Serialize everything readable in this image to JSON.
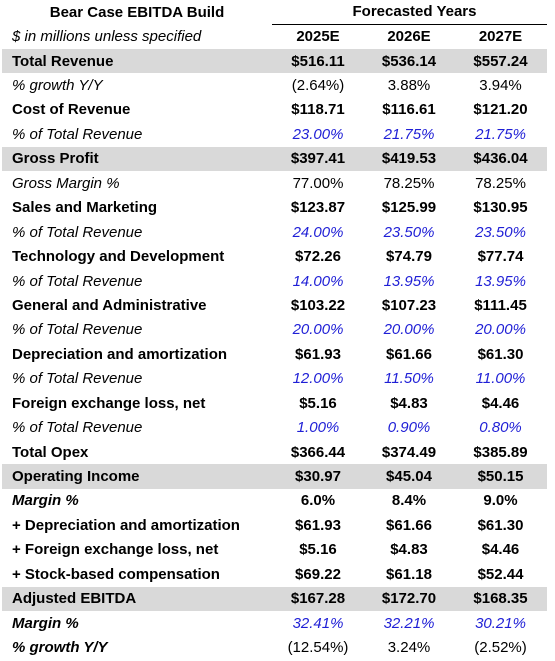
{
  "header": {
    "title": "Bear Case EBITDA Build",
    "group": "Forecasted Years",
    "note": "$ in millions unless specified",
    "years": [
      "2025E",
      "2026E",
      "2027E"
    ]
  },
  "table": {
    "rows": [
      {
        "label": "Total Revenue",
        "values": [
          "$516.11",
          "$536.14",
          "$557.24"
        ]
      },
      {
        "label": "% growth Y/Y",
        "values": [
          "(2.64%)",
          "3.88%",
          "3.94%"
        ]
      },
      {
        "label": "Cost of Revenue",
        "values": [
          "$118.71",
          "$116.61",
          "$121.20"
        ]
      },
      {
        "label": "% of Total Revenue",
        "values": [
          "23.00%",
          "21.75%",
          "21.75%"
        ]
      },
      {
        "label": "Gross Profit",
        "values": [
          "$397.41",
          "$419.53",
          "$436.04"
        ]
      },
      {
        "label": "Gross Margin %",
        "values": [
          "77.00%",
          "78.25%",
          "78.25%"
        ]
      },
      {
        "label": "Sales and Marketing",
        "values": [
          "$123.87",
          "$125.99",
          "$130.95"
        ]
      },
      {
        "label": "% of Total Revenue",
        "values": [
          "24.00%",
          "23.50%",
          "23.50%"
        ]
      },
      {
        "label": "Technology and Development",
        "values": [
          "$72.26",
          "$74.79",
          "$77.74"
        ]
      },
      {
        "label": "% of Total Revenue",
        "values": [
          "14.00%",
          "13.95%",
          "13.95%"
        ]
      },
      {
        "label": "General and Administrative",
        "values": [
          "$103.22",
          "$107.23",
          "$111.45"
        ]
      },
      {
        "label": "% of Total Revenue",
        "values": [
          "20.00%",
          "20.00%",
          "20.00%"
        ]
      },
      {
        "label": "Depreciation and amortization",
        "values": [
          "$61.93",
          "$61.66",
          "$61.30"
        ]
      },
      {
        "label": "% of Total Revenue",
        "values": [
          "12.00%",
          "11.50%",
          "11.00%"
        ]
      },
      {
        "label": "Foreign exchange loss, net",
        "values": [
          "$5.16",
          "$4.83",
          "$4.46"
        ]
      },
      {
        "label": "% of Total Revenue",
        "values": [
          "1.00%",
          "0.90%",
          "0.80%"
        ]
      },
      {
        "label": "Total Opex",
        "values": [
          "$366.44",
          "$374.49",
          "$385.89"
        ]
      },
      {
        "label": "Operating Income",
        "values": [
          "$30.97",
          "$45.04",
          "$50.15"
        ]
      },
      {
        "label": "Margin %",
        "values": [
          "6.0%",
          "8.4%",
          "9.0%"
        ]
      },
      {
        "label": "+ Depreciation and amortization",
        "values": [
          "$61.93",
          "$61.66",
          "$61.30"
        ]
      },
      {
        "label": "+ Foreign exchange loss, net",
        "values": [
          "$5.16",
          "$4.83",
          "$4.46"
        ]
      },
      {
        "label": "+ Stock-based compensation",
        "values": [
          "$69.22",
          "$61.18",
          "$52.44"
        ]
      },
      {
        "label": "Adjusted EBITDA",
        "values": [
          "$167.28",
          "$172.70",
          "$168.35"
        ]
      },
      {
        "label": "Margin %",
        "values": [
          "32.41%",
          "32.21%",
          "30.21%"
        ]
      },
      {
        "label": "% growth Y/Y",
        "values": [
          "(12.54%)",
          "3.24%",
          "(2.52%)"
        ]
      }
    ]
  }
}
